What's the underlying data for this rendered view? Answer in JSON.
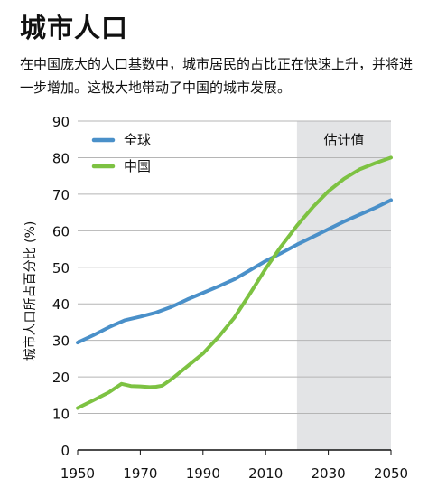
{
  "chart_data": {
    "type": "line",
    "title": "城市人口",
    "subtitle": "在中国庞大的人口基数中，城市居民的占比正在快速上升，并将进一步增加。这极大地带动了中国的城市发展。",
    "xlabel": "",
    "ylabel": "城市人口所占百分比 (%)",
    "xlim": [
      1950,
      2050
    ],
    "ylim": [
      0,
      90
    ],
    "xticks": [
      1950,
      1970,
      1990,
      2010,
      2030,
      2050
    ],
    "yticks": [
      0,
      10,
      20,
      30,
      40,
      50,
      60,
      70,
      80,
      90
    ],
    "projection": {
      "label": "估计值",
      "from": 2020,
      "to": 2050
    },
    "legend_position": "top-left",
    "grid": "horizontal",
    "series": [
      {
        "name": "全球",
        "color": "#4a90c9",
        "x": [
          1950,
          1955,
          1960,
          1965,
          1970,
          1975,
          1980,
          1985,
          1990,
          1995,
          2000,
          2005,
          2010,
          2015,
          2020,
          2025,
          2030,
          2035,
          2040,
          2045,
          2050
        ],
        "y": [
          29.4,
          31.4,
          33.6,
          35.5,
          36.5,
          37.6,
          39.2,
          41.2,
          43.0,
          44.8,
          46.7,
          49.2,
          51.7,
          53.9,
          56.2,
          58.3,
          60.4,
          62.5,
          64.4,
          66.3,
          68.4
        ]
      },
      {
        "name": "中国",
        "color": "#7dc242",
        "x": [
          1950,
          1955,
          1960,
          1964,
          1967,
          1970,
          1973,
          1975,
          1977,
          1980,
          1985,
          1990,
          1995,
          2000,
          2005,
          2010,
          2015,
          2020,
          2025,
          2030,
          2035,
          2040,
          2045,
          2050
        ],
        "y": [
          11.5,
          13.6,
          15.8,
          18.1,
          17.5,
          17.4,
          17.2,
          17.3,
          17.6,
          19.4,
          22.9,
          26.4,
          31.0,
          36.2,
          42.8,
          49.6,
          55.8,
          61.4,
          66.4,
          70.8,
          74.2,
          76.8,
          78.5,
          80.0
        ]
      }
    ]
  }
}
